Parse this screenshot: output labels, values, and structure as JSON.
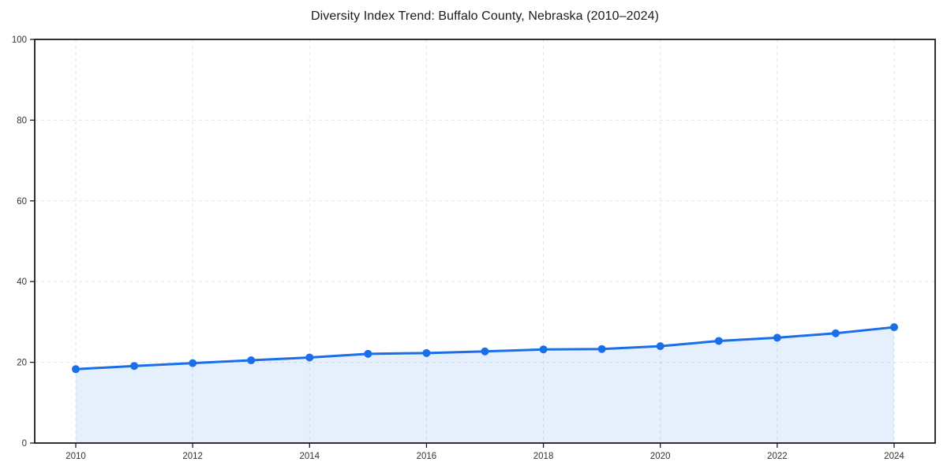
{
  "chart": {
    "title": "Diversity Index Trend: Buffalo County, Nebraska (2010–2024)"
  },
  "chart_data": {
    "type": "line",
    "title": "Diversity Index Trend: Buffalo County, Nebraska (2010–2024)",
    "xlabel": "",
    "ylabel": "",
    "x": [
      2010,
      2011,
      2012,
      2013,
      2014,
      2015,
      2016,
      2017,
      2018,
      2019,
      2020,
      2021,
      2022,
      2023,
      2024
    ],
    "series": [
      {
        "name": "Diversity Index",
        "values": [
          18.3,
          19.1,
          19.8,
          20.5,
          21.2,
          22.1,
          22.3,
          22.7,
          23.2,
          23.3,
          24.0,
          25.3,
          26.1,
          27.2,
          28.7
        ]
      }
    ],
    "ylim": [
      0,
      100
    ],
    "yticks": [
      0,
      20,
      40,
      60,
      80,
      100
    ],
    "xticks": [
      2010,
      2012,
      2014,
      2016,
      2018,
      2020,
      2022,
      2024
    ],
    "grid": true,
    "grid_style": "dashed",
    "legend": false,
    "marker": "circle",
    "area_fill": true,
    "colors": {
      "line": "#1a6ee8",
      "marker": "#1a6ee8",
      "fill": "#1a6ee8",
      "grid": "#e4e4e4",
      "spine": "#1a1a1a",
      "tick_label": "#333333",
      "title": "#1a1a1a",
      "background": "#ffffff"
    }
  }
}
